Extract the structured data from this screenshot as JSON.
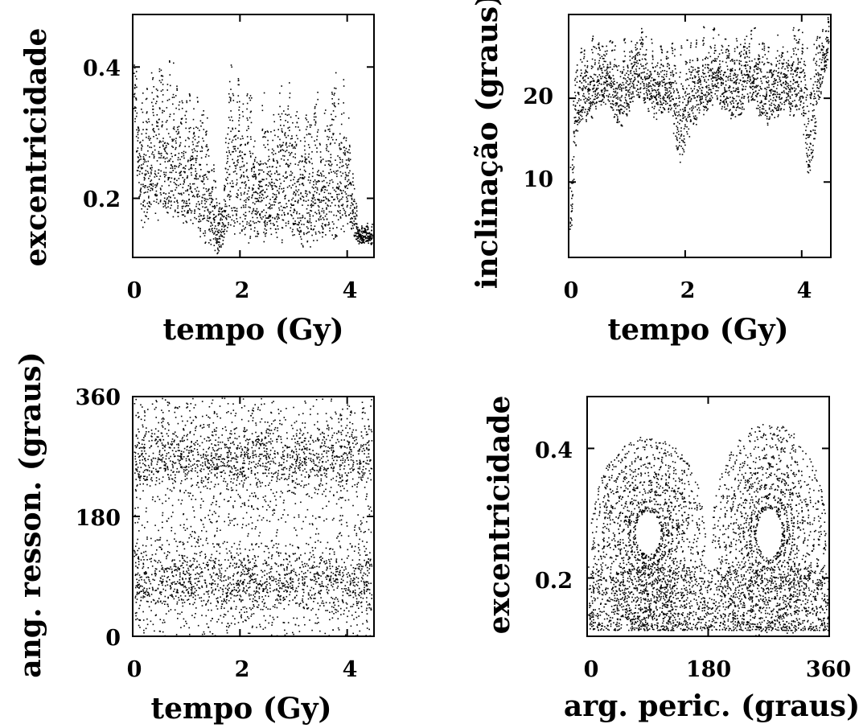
{
  "chart_data": [
    {
      "id": "tl",
      "type": "scatter",
      "title": "",
      "xlabel": "tempo (Gy)",
      "ylabel": "excentricidade",
      "xlim": [
        0,
        4.5
      ],
      "ylim": [
        0.11,
        0.48
      ],
      "xticks": [
        0,
        2,
        4
      ],
      "xtick_labels": [
        "0",
        "2",
        "4"
      ],
      "yticks": [
        0.2,
        0.4
      ],
      "ytick_labels": [
        "0.2",
        "0.4"
      ],
      "grid": false,
      "legend": "none",
      "description_of_series": "dense vertical oscillations of eccentricity over time",
      "series": [
        {
          "x": [
            0.0,
            0.1,
            0.2,
            0.3,
            0.5,
            0.7,
            0.9,
            1.1,
            1.3,
            1.5,
            1.6,
            1.8,
            2.0,
            2.2,
            2.5,
            2.8,
            3.0,
            3.3,
            3.6,
            3.9,
            4.0,
            4.2,
            4.45
          ],
          "y_min": [
            0.35,
            0.18,
            0.14,
            0.17,
            0.16,
            0.15,
            0.16,
            0.14,
            0.13,
            0.12,
            0.11,
            0.14,
            0.13,
            0.12,
            0.12,
            0.13,
            0.13,
            0.12,
            0.13,
            0.13,
            0.15,
            0.13,
            0.13
          ],
          "y_max": [
            0.48,
            0.4,
            0.38,
            0.4,
            0.42,
            0.44,
            0.4,
            0.38,
            0.39,
            0.26,
            0.2,
            0.42,
            0.38,
            0.37,
            0.39,
            0.38,
            0.39,
            0.36,
            0.38,
            0.46,
            0.37,
            0.16,
            0.17
          ]
        }
      ]
    },
    {
      "id": "tr",
      "type": "scatter",
      "title": "",
      "xlabel": "tempo (Gy)",
      "ylabel": "inclinação (graus)",
      "xlim": [
        0,
        4.5
      ],
      "ylim": [
        1,
        30
      ],
      "xticks": [
        0,
        2,
        4
      ],
      "xtick_labels": [
        "0",
        "2",
        "4"
      ],
      "yticks": [
        10,
        20
      ],
      "ytick_labels": [
        "10",
        "20"
      ],
      "grid": false,
      "legend": "none",
      "series": [
        {
          "x": [
            0.0,
            0.05,
            0.1,
            0.3,
            0.6,
            0.9,
            1.2,
            1.5,
            1.7,
            1.9,
            2.2,
            2.5,
            2.8,
            3.1,
            3.4,
            3.7,
            4.0,
            4.1,
            4.3,
            4.45
          ],
          "y_min": [
            4,
            3,
            14,
            17,
            19,
            16,
            20,
            17,
            18,
            12,
            17,
            19,
            17,
            19,
            16,
            18,
            17,
            8,
            19,
            25
          ],
          "y_max": [
            15,
            14,
            26,
            28,
            28,
            29,
            29,
            27,
            28,
            27,
            29,
            29,
            29,
            29,
            29,
            29,
            29,
            28,
            29,
            30
          ]
        }
      ]
    },
    {
      "id": "bl",
      "type": "scatter",
      "title": "",
      "xlabel": "tempo (Gy)",
      "ylabel": "ang. resson. (graus)",
      "xlim": [
        0,
        4.5
      ],
      "ylim": [
        0,
        360
      ],
      "xticks": [
        0,
        2,
        4
      ],
      "xtick_labels": [
        "0",
        "2",
        "4"
      ],
      "yticks": [
        0,
        180,
        360
      ],
      "ytick_labels": [
        "0",
        "180",
        "360"
      ],
      "grid": false,
      "legend": "none",
      "series": [
        {
          "name": "",
          "x_range": [
            0,
            4.45
          ],
          "y_center": 270,
          "y_spread": 30
        },
        {
          "name": "",
          "x_range": [
            0,
            4.45
          ],
          "y_center": 85,
          "y_spread": 30
        },
        {
          "name": "",
          "x_range": [
            0,
            4.45
          ],
          "y_range": [
            0,
            360
          ]
        }
      ]
    },
    {
      "id": "br",
      "type": "scatter",
      "title": "",
      "xlabel": "arg. peric. (graus)",
      "ylabel": "excentricidade",
      "xlim": [
        0,
        360
      ],
      "ylim": [
        0.11,
        0.48
      ],
      "xticks": [
        0,
        180,
        360
      ],
      "xtick_labels": [
        "0",
        "180",
        "360"
      ],
      "yticks": [
        0.2,
        0.4
      ],
      "ytick_labels": [
        "0.2",
        "0.4"
      ],
      "grid": false,
      "legend": "none",
      "series": [
        {
          "name": "",
          "lobe_center": [
            90,
            0.27
          ],
          "lobe_radius": [
            85,
            0.15
          ]
        },
        {
          "name": "",
          "lobe_center": [
            270,
            0.27
          ],
          "lobe_radius": [
            85,
            0.17
          ]
        },
        {
          "name": "",
          "base_band": [
            0.12,
            0.22
          ]
        }
      ]
    }
  ]
}
